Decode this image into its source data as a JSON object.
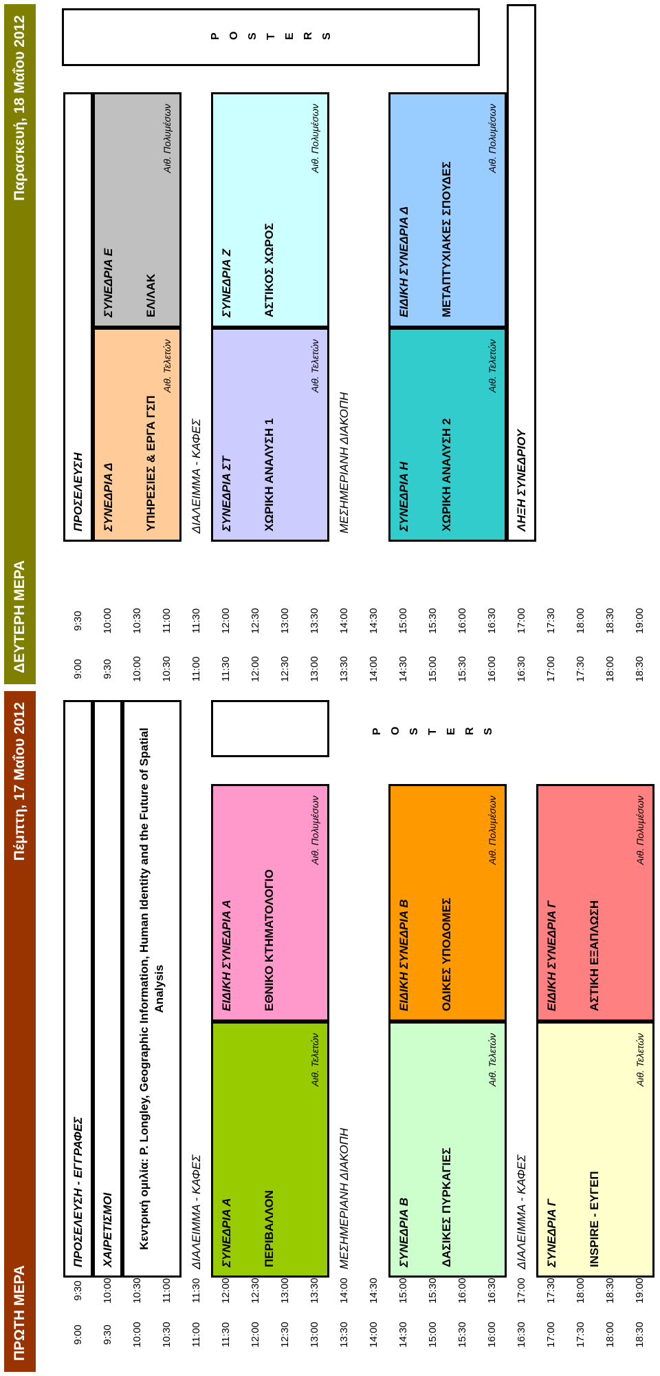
{
  "days": [
    {
      "title": "ΠΡΩΤΗ ΜΕΡΑ",
      "date": "Πέμπτη, 17 Μαΐου 2012",
      "times": [
        [
          "9:00",
          "9:30"
        ],
        [
          "9:30",
          "10:00"
        ],
        [
          "10:00",
          "10:30"
        ],
        [
          "10:30",
          "11:00"
        ],
        [
          "11:00",
          "11:30"
        ],
        [
          "11:30",
          "12:00"
        ],
        [
          "12:00",
          "12:30"
        ],
        [
          "12:30",
          "13:00"
        ],
        [
          "13:00",
          "13:30"
        ],
        [
          "13:30",
          "14:00"
        ],
        [
          "14:00",
          "14:30"
        ],
        [
          "14:30",
          "15:00"
        ],
        [
          "15:00",
          "15:30"
        ],
        [
          "15:30",
          "16:00"
        ],
        [
          "16:00",
          "16:30"
        ],
        [
          "16:30",
          "17:00"
        ],
        [
          "17:00",
          "17:30"
        ],
        [
          "17:30",
          "18:00"
        ],
        [
          "18:00",
          "18:30"
        ],
        [
          "18:30",
          "19:00"
        ]
      ],
      "items": [
        {
          "text": "ΠΡΟΣΕΛΕΥΣΗ - ΕΓΓΡΑΦΕΣ"
        },
        {
          "text": "ΧΑΙΡΕΤΙΣΜΟΙ"
        },
        {
          "text": "Κεντρική ομιλία: P. Longley, Geographic Information, Human Identity and the Future of Spatial Analysis"
        },
        {
          "text": "ΔΙΑΛΕΙΜΜΑ - ΚΑΦΕΣ"
        },
        {
          "title": "ΣΥΝΕΔΡΙΑ Α",
          "topic": "ΠΕΡΙΒΑΛΛΟΝ",
          "room": "Αιθ. Τελετών"
        },
        {
          "title": "ΕΙΔΙΚΗ ΣΥΝΕΔΡΙΑ Α",
          "topic": "ΕΘΝΙΚΟ ΚΤΗΜΑΤΟΛΟΓΙΟ",
          "room": "Αιθ. Πολυμέσων"
        },
        {
          "text": "ΜΕΣΗΜΕΡΙΑΝΗ ΔΙΑΚΟΠΗ"
        },
        {
          "title": "ΣΥΝΕΔΡΙΑ Β",
          "topic": "ΔΑΣΙΚΕΣ ΠΥΡΚΑΓΙΕΣ",
          "room": "Αιθ. Τελετών"
        },
        {
          "title": "ΕΙΔΙΚΗ ΣΥΝΕΔΡΙΑ Β",
          "topic": "ΟΔΙΚΕΣ ΥΠΟΔΟΜΕΣ",
          "room": "Αιθ. Πολυμέσων"
        },
        {
          "text": "ΔΙΑΛΕΙΜΜΑ - ΚΑΦΕΣ"
        },
        {
          "title": "ΣΥΝΕΔΡΙΑ Γ",
          "topic": "INSPIRE - ΕΥΓΕΠ",
          "room": "Αιθ. Τελετών"
        },
        {
          "title": "ΕΙΔΙΚΗ ΣΥΝΕΔΡΙΑ Γ",
          "topic": "ΑΣΤΙΚΗ ΕΞΑΠΛΩΣΗ",
          "room": "Αιθ. Πολυμέσων"
        }
      ],
      "posters": "POSTERS"
    },
    {
      "title": "ΔΕΥΤΕΡΗ ΜΕΡΑ",
      "date": "Παρασκευή, 18 Μαΐου 2012",
      "times": [
        [
          "9:00",
          "9:30"
        ],
        [
          "9:30",
          "10:00"
        ],
        [
          "10:00",
          "10:30"
        ],
        [
          "10:30",
          "11:00"
        ],
        [
          "11:00",
          "11:30"
        ],
        [
          "11:30",
          "12:00"
        ],
        [
          "12:00",
          "12:30"
        ],
        [
          "12:30",
          "13:00"
        ],
        [
          "13:00",
          "13:30"
        ],
        [
          "13:30",
          "14:00"
        ],
        [
          "14:00",
          "14:30"
        ],
        [
          "14:30",
          "15:00"
        ],
        [
          "15:00",
          "15:30"
        ],
        [
          "15:30",
          "16:00"
        ],
        [
          "16:00",
          "16:30"
        ],
        [
          "16:30",
          "17:00"
        ],
        [
          "17:00",
          "17:30"
        ],
        [
          "17:30",
          "18:00"
        ],
        [
          "18:00",
          "18:30"
        ],
        [
          "18:30",
          "19:00"
        ]
      ],
      "items": [
        {
          "text": "ΠΡΟΣΕΛΕΥΣΗ"
        },
        {
          "title": "ΣΥΝΕΔΡΙΑ Δ",
          "topic": "ΥΠΗΡΕΣΙΕΣ & ΕΡΓΑ ΓΣΠ",
          "room": "Αιθ. Τελετών"
        },
        {
          "title": "ΣΥΝΕΔΡΙΑ Ε",
          "topic": "ΕΛ/ΛΑΚ",
          "room": "Αιθ. Πολυμέσων"
        },
        {
          "text": "ΔΙΑΛΕΙΜΜΑ - ΚΑΦΕΣ"
        },
        {
          "title": "ΣΥΝΕΔΡΙΑ ΣΤ",
          "topic": "ΧΩΡΙΚΗ ΑΝΑΛΥΣΗ 1",
          "room": "Αιθ. Τελετών"
        },
        {
          "title": "ΣΥΝΕΔΡΙΑ Ζ",
          "topic": "ΑΣΤΙΚΟΣ ΧΩΡΟΣ",
          "room": "Αιθ. Πολυμέσων"
        },
        {
          "text": "ΜΕΣΗΜΕΡΙΑΝΗ ΔΙΑΚΟΠΗ"
        },
        {
          "title": "ΣΥΝΕΔΡΙΑ Η",
          "topic": "ΧΩΡΙΚΗ ΑΝΑΛΥΣΗ 2",
          "room": "Αιθ. Τελετών"
        },
        {
          "title": "ΕΙΔΙΚΗ ΣΥΝΕΔΡΙΑ Δ",
          "topic": "ΜΕΤΑΠΤΥΧΙΑΚΕΣ ΣΠΟΥΔΕΣ",
          "room": "Αιθ. Πολυμέσων"
        },
        {
          "text": "ΛΗΞΗ ΣΥΝΕΔΡΙΟΥ"
        }
      ],
      "posters": "POSTERS"
    }
  ]
}
